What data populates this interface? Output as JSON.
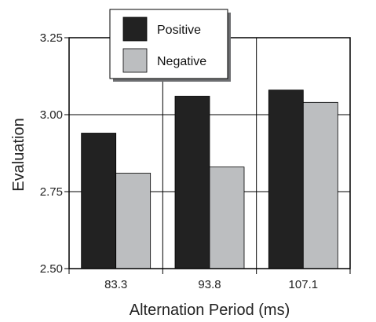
{
  "chart_data": {
    "type": "bar",
    "categories": [
      "83.3",
      "93.8",
      "107.1"
    ],
    "series": [
      {
        "name": "Positive",
        "values": [
          2.94,
          3.06,
          3.08
        ],
        "color": "#222222"
      },
      {
        "name": "Negative",
        "values": [
          2.81,
          2.83,
          3.04
        ],
        "color": "#bcbec0"
      }
    ],
    "xlabel": "Alternation Period (ms)",
    "ylabel": "Evaluation",
    "ylim": [
      2.5,
      3.25
    ],
    "yticks": [
      "2.50",
      "2.75",
      "3.00",
      "3.25"
    ],
    "grid": true,
    "legend_placement": "top-left"
  }
}
